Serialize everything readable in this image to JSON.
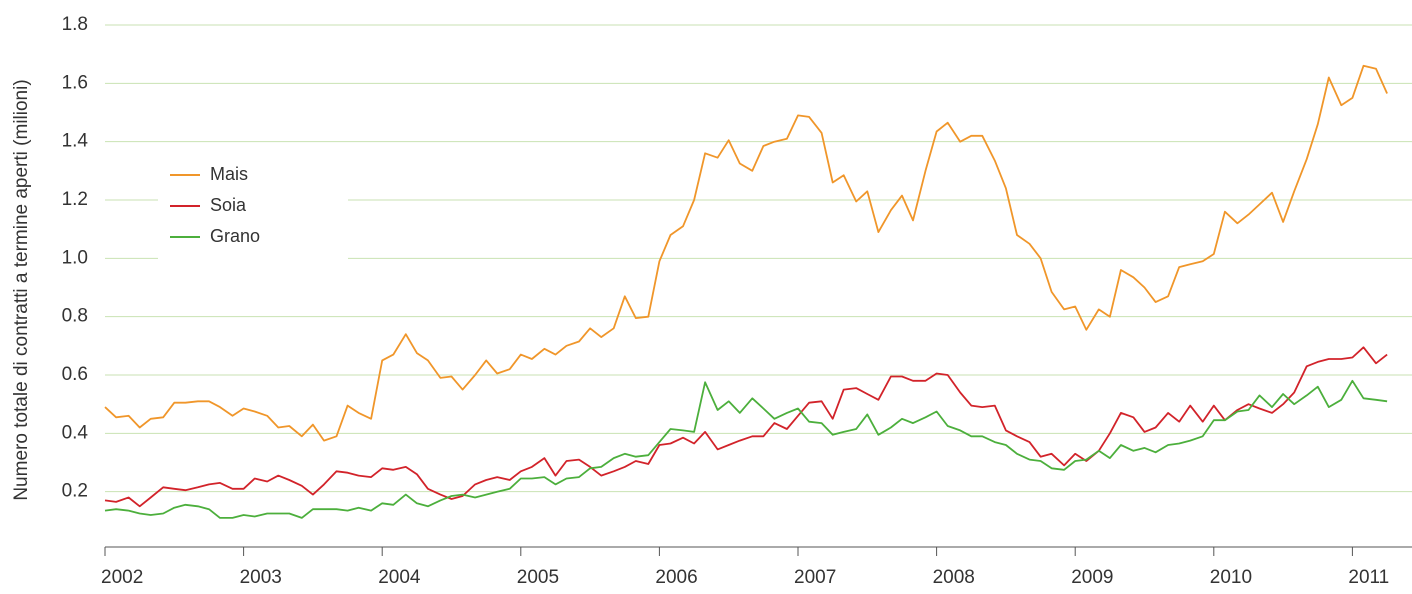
{
  "chart_data": {
    "type": "line",
    "y_label": "Numero totale di contratti a termine aperti (milioni)",
    "x": [
      2002,
      2002.08,
      2002.17,
      2002.25,
      2002.33,
      2002.42,
      2002.5,
      2002.58,
      2002.67,
      2002.75,
      2002.83,
      2002.92,
      2003,
      2003.08,
      2003.17,
      2003.25,
      2003.33,
      2003.42,
      2003.5,
      2003.58,
      2003.67,
      2003.75,
      2003.83,
      2003.92,
      2004,
      2004.08,
      2004.17,
      2004.25,
      2004.33,
      2004.42,
      2004.5,
      2004.58,
      2004.67,
      2004.75,
      2004.83,
      2004.92,
      2005,
      2005.08,
      2005.17,
      2005.25,
      2005.33,
      2005.42,
      2005.5,
      2005.58,
      2005.67,
      2005.75,
      2005.83,
      2005.92,
      2006,
      2006.08,
      2006.17,
      2006.25,
      2006.33,
      2006.42,
      2006.5,
      2006.58,
      2006.67,
      2006.75,
      2006.83,
      2006.92,
      2007,
      2007.08,
      2007.17,
      2007.25,
      2007.33,
      2007.42,
      2007.5,
      2007.58,
      2007.67,
      2007.75,
      2007.83,
      2007.92,
      2008,
      2008.08,
      2008.17,
      2008.25,
      2008.33,
      2008.42,
      2008.5,
      2008.58,
      2008.67,
      2008.75,
      2008.83,
      2008.92,
      2009,
      2009.08,
      2009.17,
      2009.25,
      2009.33,
      2009.42,
      2009.5,
      2009.58,
      2009.67,
      2009.75,
      2009.83,
      2009.92,
      2010,
      2010.08,
      2010.17,
      2010.25,
      2010.33,
      2010.42,
      2010.5,
      2010.58,
      2010.67,
      2010.75,
      2010.83,
      2010.92,
      2011,
      2011.08,
      2011.17,
      2011.25
    ],
    "series": [
      {
        "name": "Mais",
        "color": "#f0962a",
        "values": [
          0.49,
          0.455,
          0.46,
          0.42,
          0.45,
          0.455,
          0.505,
          0.505,
          0.51,
          0.51,
          0.49,
          0.46,
          0.485,
          0.475,
          0.46,
          0.42,
          0.425,
          0.39,
          0.43,
          0.375,
          0.39,
          0.495,
          0.47,
          0.45,
          0.65,
          0.67,
          0.74,
          0.675,
          0.65,
          0.59,
          0.595,
          0.55,
          0.6,
          0.65,
          0.605,
          0.62,
          0.67,
          0.655,
          0.69,
          0.67,
          0.7,
          0.715,
          0.76,
          0.73,
          0.76,
          0.87,
          0.795,
          0.8,
          0.99,
          1.08,
          1.11,
          1.2,
          1.36,
          1.345,
          1.405,
          1.325,
          1.3,
          1.385,
          1.4,
          1.41,
          1.49,
          1.485,
          1.43,
          1.26,
          1.285,
          1.195,
          1.23,
          1.09,
          1.165,
          1.215,
          1.13,
          1.3,
          1.435,
          1.465,
          1.4,
          1.42,
          1.42,
          1.335,
          1.24,
          1.08,
          1.05,
          1.0,
          0.885,
          0.825,
          0.835,
          0.755,
          0.825,
          0.8,
          0.96,
          0.935,
          0.9,
          0.85,
          0.87,
          0.97,
          0.98,
          0.99,
          1.015,
          1.16,
          1.12,
          1.15,
          1.185,
          1.225,
          1.125,
          1.23,
          1.34,
          1.46,
          1.62,
          1.525,
          1.55,
          1.66,
          1.65,
          1.565
        ]
      },
      {
        "name": "Soia",
        "color": "#d2232a",
        "values": [
          0.17,
          0.165,
          0.18,
          0.15,
          0.18,
          0.215,
          0.21,
          0.205,
          0.215,
          0.225,
          0.23,
          0.21,
          0.21,
          0.245,
          0.235,
          0.255,
          0.24,
          0.22,
          0.19,
          0.225,
          0.27,
          0.265,
          0.255,
          0.25,
          0.28,
          0.275,
          0.285,
          0.26,
          0.21,
          0.19,
          0.175,
          0.185,
          0.225,
          0.24,
          0.25,
          0.24,
          0.27,
          0.285,
          0.315,
          0.255,
          0.305,
          0.31,
          0.285,
          0.255,
          0.27,
          0.285,
          0.305,
          0.295,
          0.36,
          0.365,
          0.385,
          0.365,
          0.405,
          0.345,
          0.36,
          0.375,
          0.39,
          0.39,
          0.435,
          0.415,
          0.46,
          0.505,
          0.51,
          0.45,
          0.55,
          0.555,
          0.535,
          0.515,
          0.595,
          0.595,
          0.58,
          0.58,
          0.605,
          0.6,
          0.54,
          0.495,
          0.49,
          0.495,
          0.41,
          0.39,
          0.37,
          0.32,
          0.33,
          0.29,
          0.33,
          0.305,
          0.34,
          0.4,
          0.47,
          0.455,
          0.405,
          0.42,
          0.47,
          0.44,
          0.495,
          0.44,
          0.495,
          0.445,
          0.48,
          0.5,
          0.485,
          0.47,
          0.5,
          0.54,
          0.63,
          0.645,
          0.655,
          0.655,
          0.66,
          0.695,
          0.64,
          0.67
        ]
      },
      {
        "name": "Grano",
        "color": "#4caf3c",
        "values": [
          0.135,
          0.14,
          0.135,
          0.125,
          0.12,
          0.125,
          0.145,
          0.155,
          0.15,
          0.14,
          0.11,
          0.11,
          0.12,
          0.115,
          0.125,
          0.125,
          0.125,
          0.11,
          0.14,
          0.14,
          0.14,
          0.135,
          0.145,
          0.135,
          0.16,
          0.155,
          0.19,
          0.16,
          0.15,
          0.17,
          0.185,
          0.19,
          0.18,
          0.19,
          0.2,
          0.21,
          0.245,
          0.245,
          0.25,
          0.225,
          0.245,
          0.25,
          0.28,
          0.285,
          0.315,
          0.33,
          0.32,
          0.325,
          0.37,
          0.415,
          0.41,
          0.405,
          0.575,
          0.48,
          0.51,
          0.47,
          0.52,
          0.485,
          0.45,
          0.47,
          0.485,
          0.44,
          0.435,
          0.395,
          0.405,
          0.415,
          0.465,
          0.395,
          0.42,
          0.45,
          0.435,
          0.455,
          0.475,
          0.425,
          0.41,
          0.39,
          0.39,
          0.37,
          0.36,
          0.33,
          0.31,
          0.305,
          0.28,
          0.275,
          0.305,
          0.31,
          0.34,
          0.315,
          0.36,
          0.34,
          0.35,
          0.335,
          0.36,
          0.365,
          0.375,
          0.39,
          0.445,
          0.445,
          0.475,
          0.48,
          0.53,
          0.49,
          0.535,
          0.5,
          0.53,
          0.56,
          0.49,
          0.515,
          0.58,
          0.52,
          0.515,
          0.51
        ]
      }
    ],
    "xlim": [
      2002,
      2011.43
    ],
    "xticks": [
      2002,
      2003,
      2004,
      2005,
      2006,
      2007,
      2008,
      2009,
      2010,
      2011
    ],
    "ylim": [
      0,
      1.8
    ],
    "yticks": [
      0.2,
      0.4,
      0.6,
      0.8,
      {
        "value": 1,
        "label": "1.0"
      },
      1.2,
      1.4,
      1.6,
      1.8
    ],
    "grid": true,
    "legend": "center left"
  }
}
